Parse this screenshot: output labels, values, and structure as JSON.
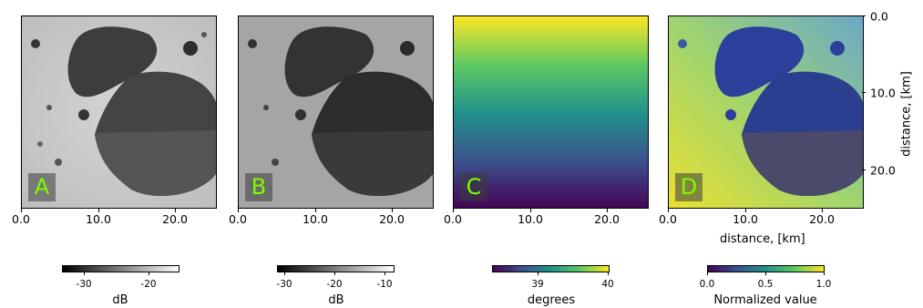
{
  "panels": [
    {
      "label": "A",
      "style": "sar1"
    },
    {
      "label": "B",
      "style": "sar2"
    },
    {
      "label": "C",
      "style": "gradient"
    },
    {
      "label": "D",
      "style": "rgb"
    }
  ],
  "x_axis": {
    "ticks": [
      "0.0",
      "10.0",
      "20.0"
    ],
    "label": "distance, [km]"
  },
  "y_axis": {
    "ticks": [
      "0.0",
      "10.0",
      "20.0"
    ],
    "label": "distance, [km]"
  },
  "colorbars": [
    {
      "ticks": [
        "-30",
        "-20"
      ],
      "label": "dB",
      "colormap": "gray"
    },
    {
      "ticks": [
        "-30",
        "-20",
        "-10"
      ],
      "label": "dB",
      "colormap": "gray"
    },
    {
      "ticks": [
        "39",
        "40"
      ],
      "label": "degrees",
      "colormap": "viridis"
    },
    {
      "ticks": [
        "0.0",
        "0.5",
        "1.0"
      ],
      "label": "Normalized value",
      "colormap": "viridis"
    }
  ],
  "colors": {
    "label_text": "#7CFC00",
    "viridis": [
      "#440154",
      "#3b528b",
      "#21918c",
      "#5ec962",
      "#fde725"
    ]
  }
}
